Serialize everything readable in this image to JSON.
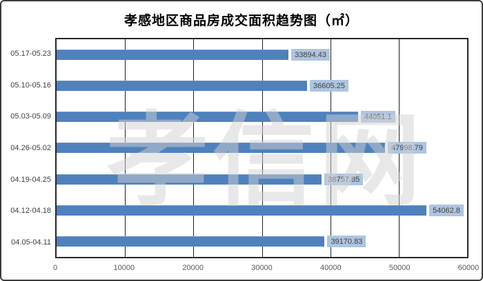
{
  "chart_data": {
    "type": "bar",
    "orientation": "horizontal",
    "title": "孝感地区商品房成交面积趋势图（㎡）",
    "categories": [
      "05.17-05.23",
      "05.10-05.16",
      "05.03-05.09",
      "04.26-05.02",
      "04.19-04.25",
      "04.12-04.18",
      "04.05-04.11"
    ],
    "values": [
      33894.43,
      36605.25,
      44051.1,
      47998.79,
      38757.85,
      54062.8,
      39170.83
    ],
    "value_labels": [
      "33894.43",
      "36605.25",
      "44051.1",
      "47998.79",
      "38757.85",
      "54062.8",
      "39170.83"
    ],
    "x_ticks": [
      "0",
      "10000",
      "20000",
      "30000",
      "40000",
      "50000",
      "60000"
    ],
    "xlim": [
      0,
      60000
    ],
    "grid": "vertical-major",
    "legend_position": "none",
    "bar_color": "#4f81bd",
    "value_label_bg": "#aec5e0",
    "watermark": "孝信网"
  }
}
